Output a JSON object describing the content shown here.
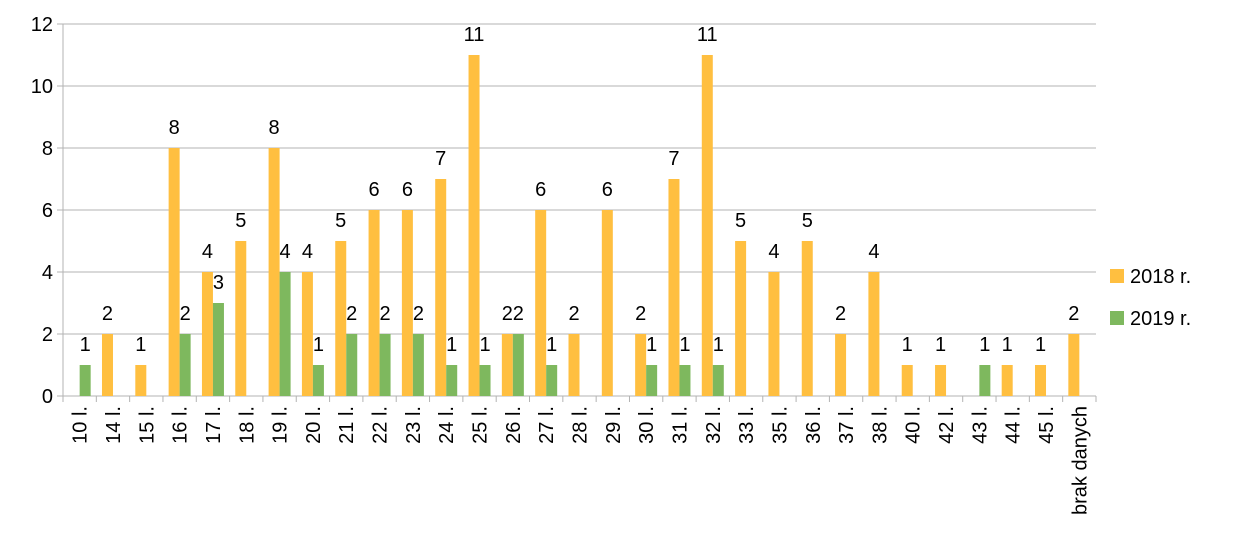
{
  "chart_data": {
    "type": "bar",
    "categories": [
      "10 l.",
      "14 l.",
      "15 l.",
      "16 l.",
      "17 l.",
      "18 l.",
      "19 l.",
      "20 l.",
      "21 l.",
      "22 l.",
      "23 l.",
      "24 l.",
      "25 l.",
      "26 l.",
      "27 l.",
      "28 l.",
      "29 l.",
      "30 l.",
      "31 l.",
      "32 l.",
      "33 l.",
      "35 l.",
      "36 l.",
      "37 l.",
      "38 l.",
      "40 l.",
      "42 l.",
      "43 l.",
      "44 l.",
      "45 l.",
      "brak danych"
    ],
    "series": [
      {
        "name": "2018 r.",
        "color": "#ffbf40",
        "values": [
          null,
          2,
          1,
          8,
          4,
          5,
          8,
          4,
          5,
          6,
          6,
          7,
          11,
          2,
          6,
          2,
          6,
          2,
          7,
          11,
          5,
          4,
          5,
          2,
          4,
          1,
          1,
          null,
          1,
          1,
          2
        ]
      },
      {
        "name": "2019 r.",
        "color": "#7eb85e",
        "values": [
          1,
          null,
          null,
          2,
          3,
          null,
          4,
          1,
          2,
          2,
          2,
          1,
          1,
          2,
          1,
          null,
          null,
          1,
          1,
          1,
          null,
          null,
          null,
          null,
          null,
          null,
          null,
          1,
          null,
          null,
          null
        ]
      }
    ],
    "ylim": [
      0,
      12
    ],
    "yticks": [
      0,
      2,
      4,
      6,
      8,
      10,
      12
    ],
    "grid": true,
    "legend": "right"
  }
}
